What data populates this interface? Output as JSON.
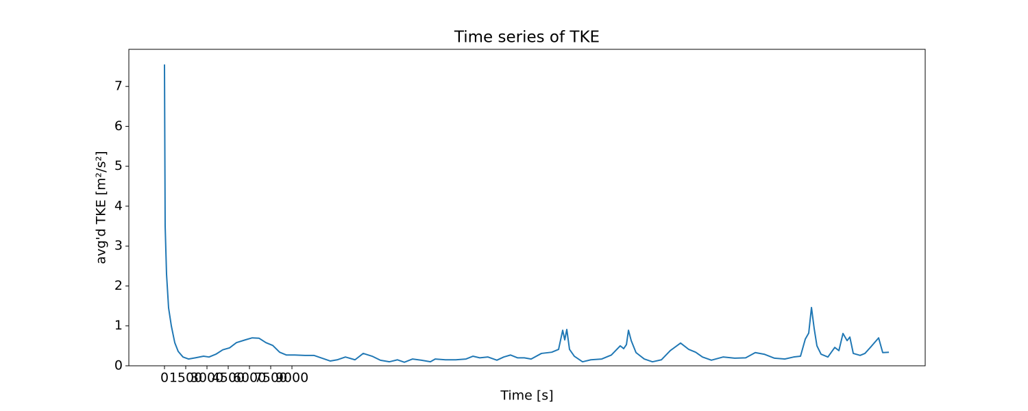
{
  "chart_data": {
    "type": "line",
    "title": "Time series of TKE",
    "x_label": "Time [s]",
    "y_label": "avg'd TKE [m²/s²]",
    "x": [
      0,
      48,
      145,
      290,
      484,
      726,
      968,
      1307,
      1694,
      2178,
      2758,
      3145,
      3629,
      4113,
      4597,
      5081,
      5710,
      6194,
      6678,
      7162,
      7646,
      8130,
      8613,
      9194,
      9920,
      10549,
      11130,
      11710,
      12194,
      12775,
      13452,
      14033,
      14662,
      15243,
      15872,
      16453,
      16937,
      17517,
      18147,
      18775,
      19114,
      19840,
      20566,
      21291,
      21775,
      22259,
      22840,
      23469,
      23953,
      24437,
      24921,
      25405,
      25889,
      26615,
      27340,
      27824,
      27969,
      28115,
      28260,
      28405,
      28598,
      28937,
      29518,
      30099,
      30873,
      31550,
      32179,
      32421,
      32615,
      32760,
      32954,
      33293,
      33873,
      34455,
      35083,
      35712,
      36438,
      37018,
      37502,
      37986,
      38615,
      39438,
      40260,
      41035,
      41712,
      42341,
      43067,
      43793,
      44422,
      44905,
      45244,
      45486,
      45680,
      45873,
      46066,
      46357,
      46840,
      47325,
      47616,
      47905,
      48196,
      48390,
      48632,
      49116,
      49455,
      49838,
      50422,
      50710,
      51148
    ],
    "series": [
      {
        "name": "TKE",
        "color": "#1f77b4",
        "values": [
          7.55,
          3.5,
          2.3,
          1.45,
          1.0,
          0.58,
          0.36,
          0.22,
          0.17,
          0.2,
          0.24,
          0.22,
          0.29,
          0.4,
          0.45,
          0.58,
          0.65,
          0.7,
          0.69,
          0.58,
          0.51,
          0.34,
          0.27,
          0.27,
          0.26,
          0.26,
          0.19,
          0.12,
          0.15,
          0.22,
          0.15,
          0.31,
          0.24,
          0.14,
          0.1,
          0.15,
          0.09,
          0.17,
          0.14,
          0.1,
          0.17,
          0.15,
          0.15,
          0.17,
          0.24,
          0.2,
          0.22,
          0.14,
          0.22,
          0.27,
          0.2,
          0.2,
          0.17,
          0.31,
          0.34,
          0.41,
          0.65,
          0.89,
          0.65,
          0.91,
          0.41,
          0.24,
          0.1,
          0.15,
          0.17,
          0.27,
          0.5,
          0.43,
          0.53,
          0.89,
          0.63,
          0.33,
          0.17,
          0.1,
          0.15,
          0.38,
          0.57,
          0.41,
          0.34,
          0.22,
          0.14,
          0.22,
          0.19,
          0.2,
          0.33,
          0.29,
          0.19,
          0.17,
          0.22,
          0.24,
          0.67,
          0.82,
          1.46,
          0.93,
          0.5,
          0.29,
          0.22,
          0.46,
          0.38,
          0.81,
          0.63,
          0.72,
          0.31,
          0.26,
          0.31,
          0.46,
          0.7,
          0.33,
          0.34
        ]
      }
    ],
    "xlim": [
      -2516,
      53710
    ],
    "ylim": [
      0,
      7.93
    ],
    "xticks": [
      0,
      1500,
      3000,
      4500,
      6000,
      7500,
      9000
    ],
    "yticks": [
      0,
      1,
      2,
      3,
      4,
      5,
      6,
      7
    ]
  }
}
